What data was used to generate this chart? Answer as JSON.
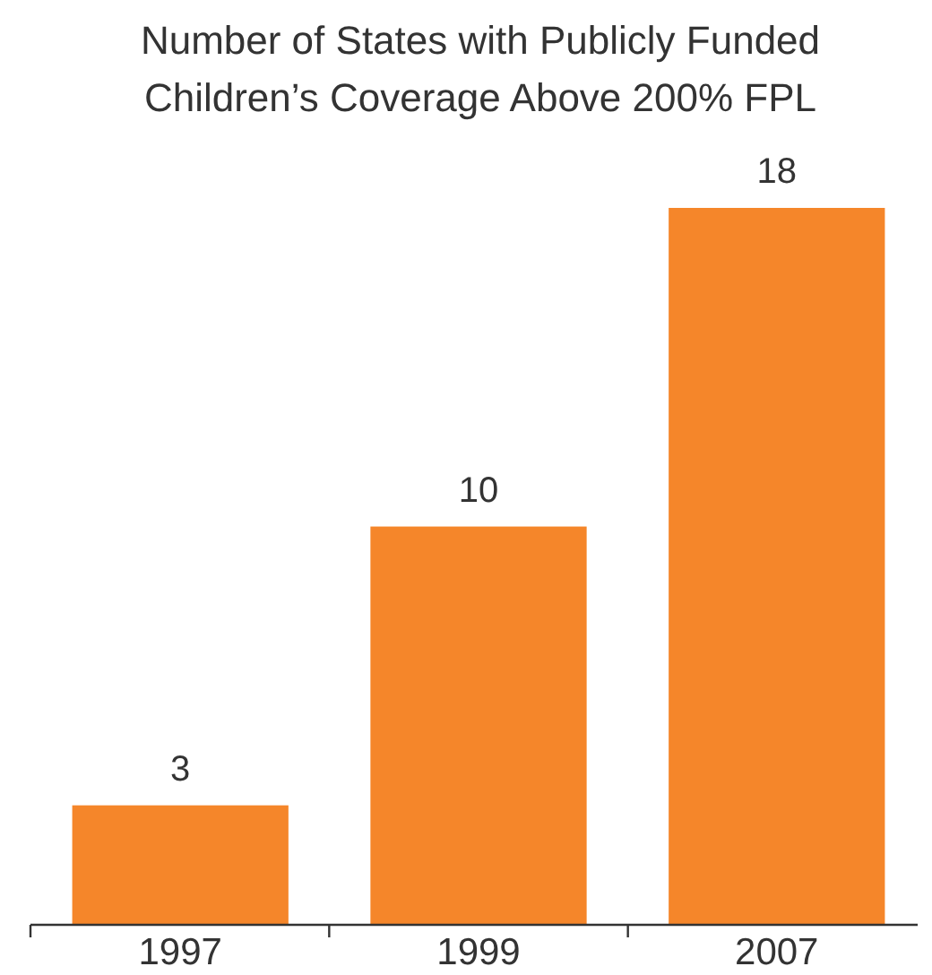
{
  "chart_data": {
    "type": "bar",
    "title": "Number of States with Publicly Funded\nChildren’s Coverage Above 200% FPL",
    "categories": [
      "1997",
      "1999",
      "2007"
    ],
    "values": [
      3,
      10,
      18
    ],
    "color": "#f5862a",
    "data_labels": true
  }
}
